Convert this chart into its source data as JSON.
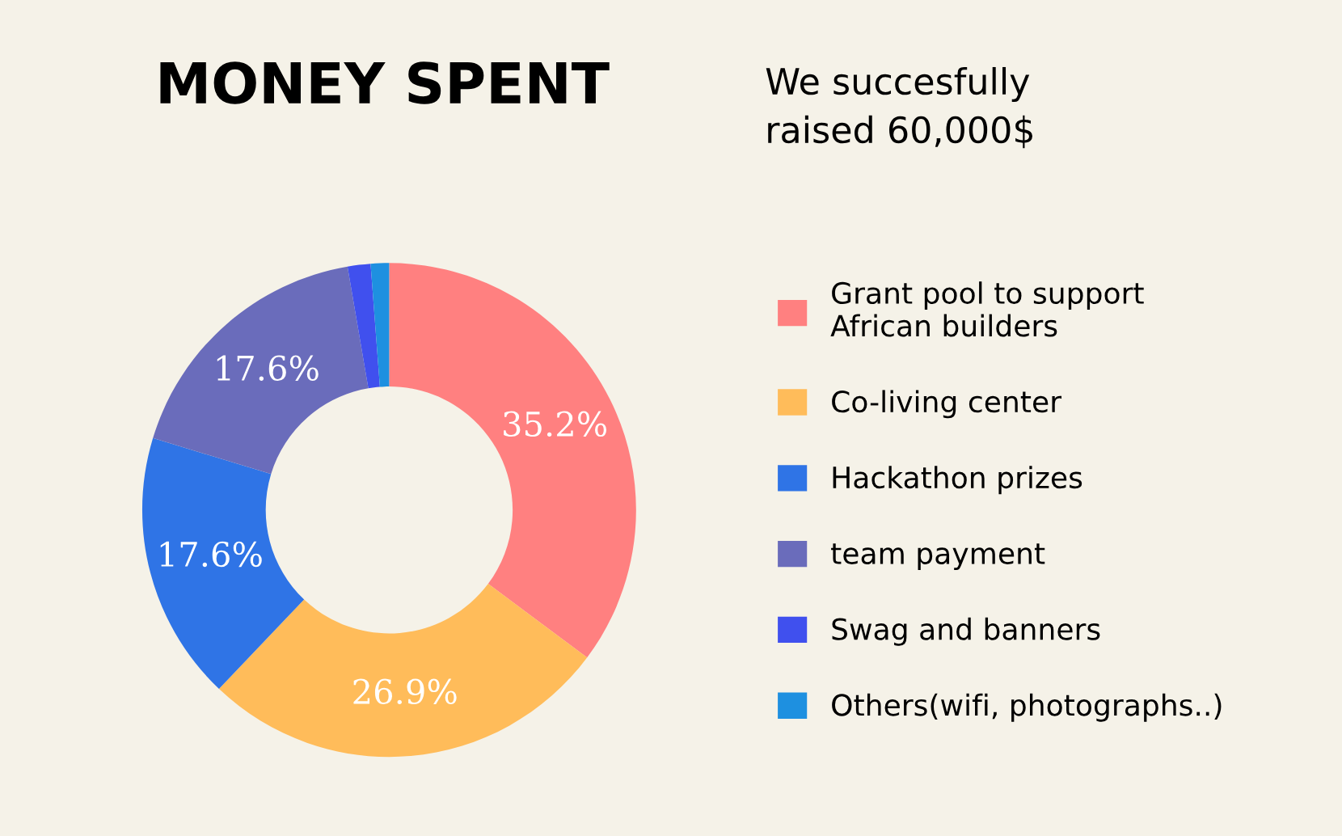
{
  "chart_data": {
    "type": "donut",
    "title": "MONEY SPENT",
    "subtitle": "We succesfully\nraised 60,000$",
    "categories": [
      "Grant pool to support\nAfrican builders",
      "Co-living center",
      "Hackathon prizes",
      "team payment",
      "Swag and banners",
      "Others(wifi, photographs..)"
    ],
    "values": [
      35.2,
      26.9,
      17.6,
      17.6,
      1.5,
      1.2
    ],
    "colors": [
      "#ff8080",
      "#ffbc5a",
      "#2f74e6",
      "#6a6cbb",
      "#4050ee",
      "#1e90e0"
    ],
    "value_labels": [
      "35.2%",
      "26.9%",
      "17.6%",
      "17.6%",
      null,
      null
    ],
    "legend": "right"
  }
}
